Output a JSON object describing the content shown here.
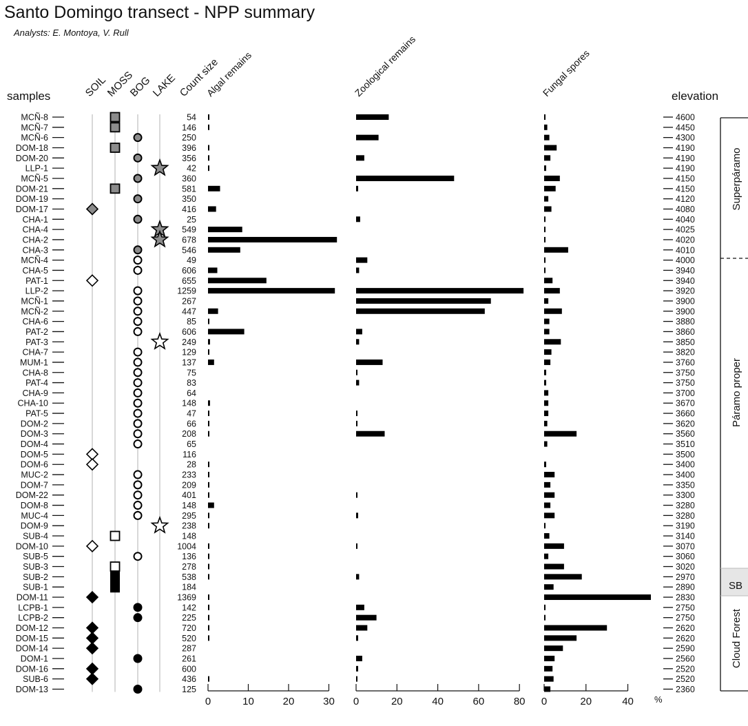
{
  "title": "Santo Domingo transect - NPP summary",
  "subtitle": "Analysts: E. Montoya, V. Rull",
  "headers": {
    "samples": "samples",
    "soil": "SOIL",
    "moss": "MOSS",
    "bog": "BOG",
    "lake": "LAKE",
    "count": "Count size",
    "elevation": "elevation",
    "percent_unit": "%"
  },
  "zones": [
    {
      "label": "Superpáramo"
    },
    {
      "label": "Páramo proper"
    },
    {
      "label": "SB"
    },
    {
      "label": "Cloud Forest"
    }
  ],
  "chart_data": {
    "type": "bar",
    "orientation": "horizontal",
    "title": "Santo Domingo transect - NPP summary",
    "categories": [
      "MCÑ-8",
      "MCÑ-7",
      "MCÑ-6",
      "DOM-18",
      "DOM-20",
      "LLP-1",
      "MCÑ-5",
      "DOM-21",
      "DOM-19",
      "DOM-17",
      "CHA-1",
      "CHA-4",
      "CHA-2",
      "CHA-3",
      "MCÑ-4",
      "CHA-5",
      "PAT-1",
      "LLP-2",
      "MCÑ-1",
      "MCÑ-2",
      "CHA-6",
      "PAT-2",
      "PAT-3",
      "CHA-7",
      "MUM-1",
      "CHA-8",
      "PAT-4",
      "CHA-9",
      "CHA-10",
      "PAT-5",
      "DOM-2",
      "DOM-3",
      "DOM-4",
      "DOM-5",
      "DOM-6",
      "MUC-2",
      "DOM-7",
      "DOM-22",
      "DOM-8",
      "MUC-4",
      "DOM-9",
      "SUB-4",
      "DOM-10",
      "SUB-5",
      "SUB-3",
      "SUB-2",
      "SUB-1",
      "DOM-11",
      "LCPB-1",
      "LCPB-2",
      "DOM-12",
      "DOM-15",
      "DOM-14",
      "DOM-1",
      "DOM-16",
      "SUB-6",
      "DOM-13"
    ],
    "count_size": [
      54,
      146,
      250,
      396,
      356,
      42,
      360,
      581,
      350,
      416,
      25,
      549,
      678,
      546,
      49,
      606,
      655,
      1259,
      267,
      447,
      85,
      606,
      249,
      129,
      137,
      75,
      83,
      64,
      148,
      47,
      66,
      208,
      65,
      116,
      28,
      233,
      209,
      401,
      148,
      295,
      238,
      148,
      1004,
      136,
      278,
      538,
      184,
      1369,
      142,
      225,
      720,
      520,
      287,
      261,
      600,
      436,
      125
    ],
    "elevation": [
      4600,
      4450,
      4300,
      4190,
      4190,
      4190,
      4150,
      4150,
      4120,
      4080,
      4040,
      4025,
      4020,
      4010,
      4000,
      3940,
      3940,
      3920,
      3900,
      3900,
      3880,
      3860,
      3850,
      3820,
      3760,
      3750,
      3750,
      3700,
      3670,
      3660,
      3620,
      3560,
      3510,
      3500,
      3400,
      3400,
      3350,
      3300,
      3280,
      3280,
      3190,
      3140,
      3070,
      3060,
      3020,
      2970,
      2890,
      2830,
      2750,
      2750,
      2620,
      2620,
      2590,
      2560,
      2520,
      2520,
      2360
    ],
    "habitat": [
      "moss",
      "moss",
      "bog",
      "moss",
      "bog",
      "lake",
      "bog",
      "moss",
      "bog",
      "soil",
      "bog",
      "lake",
      "lake",
      "bog",
      "bog",
      "bog",
      "soil",
      "bog",
      "bog",
      "bog",
      "bog",
      "bog",
      "lake",
      "bog",
      "bog",
      "bog",
      "bog",
      "bog",
      "bog",
      "bog",
      "bog",
      "bog",
      "bog",
      "soil",
      "soil",
      "bog",
      "bog",
      "bog",
      "bog",
      "bog",
      "lake",
      "moss",
      "soil",
      "bog",
      "moss",
      "moss",
      "moss",
      "soil",
      "bog",
      "bog",
      "soil",
      "soil",
      "soil",
      "bog",
      "soil",
      "soil",
      "bog"
    ],
    "habitat_symbols": {
      "soil": "diamond",
      "moss": "square",
      "bog": "circle",
      "lake": "star"
    },
    "series": [
      {
        "name": "Algal remains",
        "xticks": [
          0,
          10,
          20,
          30
        ],
        "xlim": [
          0,
          33
        ],
        "values": [
          0.2,
          0.1,
          0,
          0.2,
          0.1,
          0.2,
          0,
          3,
          0,
          2,
          0,
          8.5,
          32,
          8,
          0,
          2.3,
          14.5,
          31.5,
          0,
          2.5,
          0.1,
          9,
          0.5,
          0.3,
          1.5,
          0,
          0,
          0,
          0.5,
          0.2,
          0.2,
          0.3,
          0,
          0,
          0.1,
          0.2,
          0.2,
          0.2,
          1.5,
          0.1,
          0.3,
          0,
          0.2,
          0.1,
          0.1,
          0.1,
          0,
          0.3,
          0.1,
          0.1,
          0.1,
          0.3,
          0,
          0,
          0,
          0.2,
          0
        ]
      },
      {
        "name": "Zoological remains",
        "xticks": [
          0,
          20,
          40,
          60,
          80
        ],
        "xlim": [
          0,
          85
        ],
        "values": [
          16,
          0,
          11,
          0,
          4,
          0,
          48,
          1,
          0,
          0,
          2,
          0,
          0,
          0,
          5.5,
          1.5,
          0,
          82,
          66,
          63,
          0,
          3,
          1.5,
          0,
          13,
          0.5,
          1.5,
          0,
          0,
          0.5,
          0.5,
          14,
          0,
          0,
          0,
          0,
          0,
          0.5,
          0,
          1,
          0,
          0,
          0.5,
          0,
          0,
          1.5,
          0,
          0,
          4,
          10,
          5.5,
          1,
          0,
          3,
          1,
          0.5,
          0
        ]
      },
      {
        "name": "Fungal spores",
        "xticks": [
          0,
          20,
          40
        ],
        "xlim": [
          0,
          52
        ],
        "values": [
          0.5,
          1.5,
          2.5,
          6,
          3,
          1,
          7.5,
          5.5,
          2,
          3.5,
          0.2,
          0.2,
          0.2,
          11.5,
          0.5,
          0.5,
          4,
          7.5,
          2,
          8.5,
          2.5,
          2.5,
          8,
          3.5,
          3,
          1,
          1,
          2,
          2,
          2,
          1.5,
          15.5,
          1.5,
          0,
          1,
          5,
          3,
          5,
          3,
          5,
          0.5,
          2.5,
          9.5,
          2,
          9.5,
          18,
          4.5,
          51,
          0.5,
          0.5,
          30,
          15.5,
          9,
          5,
          4,
          4.5,
          3
        ]
      }
    ],
    "xunit": "%",
    "ylabel_left": "samples",
    "ylabel_right": "elevation"
  }
}
